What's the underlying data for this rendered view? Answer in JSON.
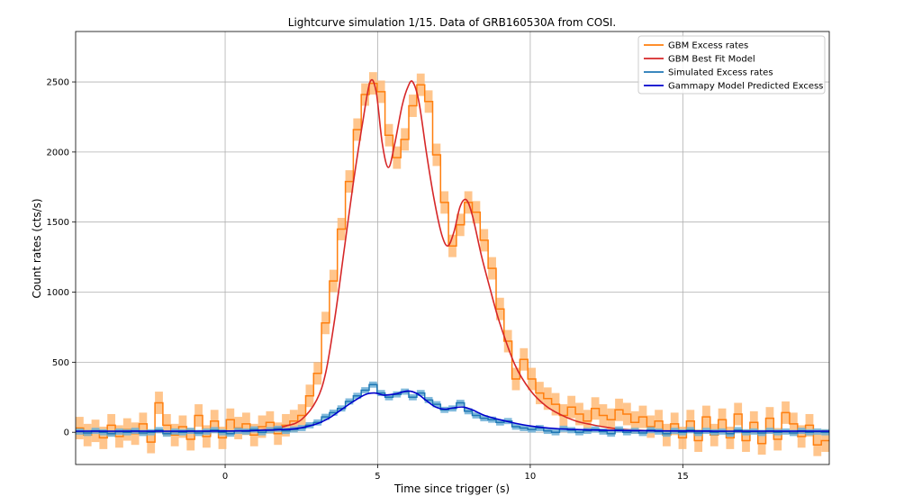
{
  "chart_data": {
    "type": "line",
    "title": "Lightcurve simulation 1/15. Data of GRB160530A from COSI.",
    "xlabel": "Time since trigger (s)",
    "ylabel": "Count rates (cts/s)",
    "xlim": [
      -4.9,
      19.8
    ],
    "ylim": [
      -230,
      2860
    ],
    "xticks": [
      0,
      5,
      10,
      15
    ],
    "yticks": [
      0,
      500,
      1000,
      1500,
      2000,
      2500
    ],
    "grid": true,
    "legend_position": "upper right",
    "series": [
      {
        "name": "GBM Excess rates",
        "color": "#ff7f0e",
        "band_color": "#ffbb78",
        "style": "step-with-error",
        "x": [
          -4.9,
          -4.64,
          -4.38,
          -4.12,
          -3.86,
          -3.6,
          -3.34,
          -3.08,
          -2.82,
          -2.56,
          -2.3,
          -2.04,
          -1.78,
          -1.52,
          -1.26,
          -1.0,
          -0.74,
          -0.48,
          -0.22,
          0.04,
          0.3,
          0.56,
          0.82,
          1.08,
          1.34,
          1.6,
          1.86,
          2.12,
          2.38,
          2.64,
          2.9,
          3.16,
          3.42,
          3.68,
          3.94,
          4.2,
          4.46,
          4.72,
          4.98,
          5.24,
          5.5,
          5.76,
          6.02,
          6.28,
          6.54,
          6.8,
          7.06,
          7.32,
          7.58,
          7.84,
          8.1,
          8.36,
          8.62,
          8.88,
          9.14,
          9.4,
          9.66,
          9.92,
          10.18,
          10.44,
          10.7,
          10.96,
          11.22,
          11.48,
          11.74,
          12.0,
          12.26,
          12.52,
          12.78,
          13.04,
          13.3,
          13.56,
          13.82,
          14.08,
          14.34,
          14.6,
          14.86,
          15.12,
          15.38,
          15.64,
          15.9,
          16.16,
          16.42,
          16.68,
          16.94,
          17.2,
          17.46,
          17.72,
          17.98,
          18.24,
          18.5,
          18.76,
          19.02,
          19.28,
          19.54
        ],
        "y": [
          30,
          -20,
          10,
          -40,
          50,
          -30,
          20,
          -10,
          60,
          -70,
          210,
          50,
          -20,
          40,
          -50,
          120,
          -30,
          80,
          -40,
          90,
          30,
          60,
          -20,
          40,
          70,
          -10,
          50,
          80,
          120,
          260,
          420,
          780,
          1080,
          1450,
          1790,
          2160,
          2410,
          2490,
          2430,
          2120,
          1960,
          2090,
          2330,
          2480,
          2360,
          1980,
          1640,
          1330,
          1480,
          1640,
          1570,
          1370,
          1170,
          880,
          650,
          380,
          520,
          380,
          280,
          240,
          200,
          120,
          180,
          130,
          80,
          170,
          120,
          90,
          160,
          130,
          70,
          110,
          40,
          80,
          -20,
          60,
          -40,
          80,
          -60,
          110,
          -20,
          90,
          -40,
          130,
          -60,
          70,
          -80,
          100,
          -50,
          140,
          60,
          -30,
          50,
          -90,
          -60
        ],
        "err": 80
      },
      {
        "name": "GBM Best Fit Model",
        "color": "#d62728",
        "style": "line",
        "x": [
          -4.9,
          -4.0,
          -3.0,
          -2.0,
          -1.0,
          0.0,
          0.5,
          1.0,
          1.5,
          2.0,
          2.5,
          3.0,
          3.3,
          3.6,
          3.9,
          4.2,
          4.5,
          4.75,
          4.95,
          5.15,
          5.35,
          5.55,
          5.8,
          6.0,
          6.15,
          6.35,
          6.6,
          6.85,
          7.1,
          7.3,
          7.5,
          7.7,
          7.9,
          8.1,
          8.4,
          8.7,
          9.0,
          9.5,
          10.0,
          10.5,
          11.0,
          11.5,
          12.0,
          12.5,
          13.0,
          14.0,
          15.0,
          16.0,
          17.0,
          18.0,
          19.8
        ],
        "y": [
          0,
          0,
          0,
          0,
          0,
          5,
          8,
          15,
          25,
          45,
          90,
          230,
          430,
          820,
          1300,
          1780,
          2200,
          2500,
          2430,
          2060,
          1890,
          2050,
          2330,
          2470,
          2500,
          2360,
          1990,
          1660,
          1410,
          1330,
          1430,
          1610,
          1660,
          1550,
          1260,
          1010,
          780,
          480,
          300,
          190,
          125,
          80,
          55,
          35,
          22,
          10,
          5,
          2,
          1,
          0,
          0
        ]
      },
      {
        "name": "Simulated Excess rates",
        "color": "#1f77b4",
        "band_color": "#6baed6",
        "style": "step-with-error",
        "x": [
          -4.9,
          -4.64,
          -4.38,
          -4.12,
          -3.86,
          -3.6,
          -3.34,
          -3.08,
          -2.82,
          -2.56,
          -2.3,
          -2.04,
          -1.78,
          -1.52,
          -1.26,
          -1.0,
          -0.74,
          -0.48,
          -0.22,
          0.04,
          0.3,
          0.56,
          0.82,
          1.08,
          1.34,
          1.6,
          1.86,
          2.12,
          2.38,
          2.64,
          2.9,
          3.16,
          3.42,
          3.68,
          3.94,
          4.2,
          4.46,
          4.72,
          4.98,
          5.24,
          5.5,
          5.76,
          6.02,
          6.28,
          6.54,
          6.8,
          7.06,
          7.32,
          7.58,
          7.84,
          8.1,
          8.36,
          8.62,
          8.88,
          9.14,
          9.4,
          9.66,
          9.92,
          10.18,
          10.44,
          10.7,
          10.96,
          11.22,
          11.48,
          11.74,
          12.0,
          12.26,
          12.52,
          12.78,
          13.04,
          13.3,
          13.56,
          13.82,
          14.08,
          14.34,
          14.6,
          14.86,
          15.12,
          15.38,
          15.64,
          15.9,
          16.16,
          16.42,
          16.68,
          16.94,
          17.2,
          17.46,
          17.72,
          17.98,
          18.24,
          18.5,
          18.76,
          19.02,
          19.28,
          19.54
        ],
        "y": [
          5,
          -5,
          10,
          0,
          -10,
          5,
          0,
          10,
          -5,
          0,
          15,
          -10,
          5,
          0,
          10,
          -5,
          5,
          15,
          0,
          -10,
          10,
          5,
          20,
          0,
          15,
          25,
          10,
          20,
          30,
          50,
          70,
          110,
          140,
          170,
          220,
          260,
          300,
          340,
          280,
          250,
          270,
          290,
          250,
          280,
          230,
          200,
          160,
          170,
          210,
          150,
          120,
          100,
          90,
          70,
          80,
          40,
          30,
          20,
          30,
          10,
          0,
          25,
          15,
          0,
          10,
          20,
          5,
          -10,
          20,
          0,
          10,
          -5,
          15,
          5,
          -10,
          10,
          0,
          15,
          -5,
          10,
          0,
          5,
          -10,
          15,
          0,
          5,
          -5,
          10,
          0,
          5,
          -5,
          10,
          0,
          5,
          0
        ],
        "err": 22
      },
      {
        "name": "Gammapy Model Predicted Excess",
        "color": "#0000cc",
        "style": "line",
        "x": [
          -4.9,
          -3.0,
          -1.0,
          0.0,
          1.0,
          2.0,
          2.5,
          3.0,
          3.4,
          3.8,
          4.2,
          4.6,
          4.9,
          5.2,
          5.6,
          6.0,
          6.3,
          6.6,
          6.9,
          7.2,
          7.5,
          7.8,
          8.1,
          8.5,
          9.0,
          9.5,
          10.0,
          10.5,
          11.0,
          12.0,
          13.0,
          14.0,
          15.0,
          16.0,
          17.0,
          18.0,
          19.8
        ],
        "y": [
          8,
          8,
          8,
          9,
          12,
          20,
          32,
          60,
          100,
          160,
          220,
          270,
          280,
          265,
          275,
          295,
          275,
          225,
          180,
          165,
          175,
          180,
          160,
          120,
          90,
          65,
          45,
          32,
          24,
          16,
          12,
          10,
          9,
          8,
          8,
          8,
          8
        ]
      }
    ]
  }
}
